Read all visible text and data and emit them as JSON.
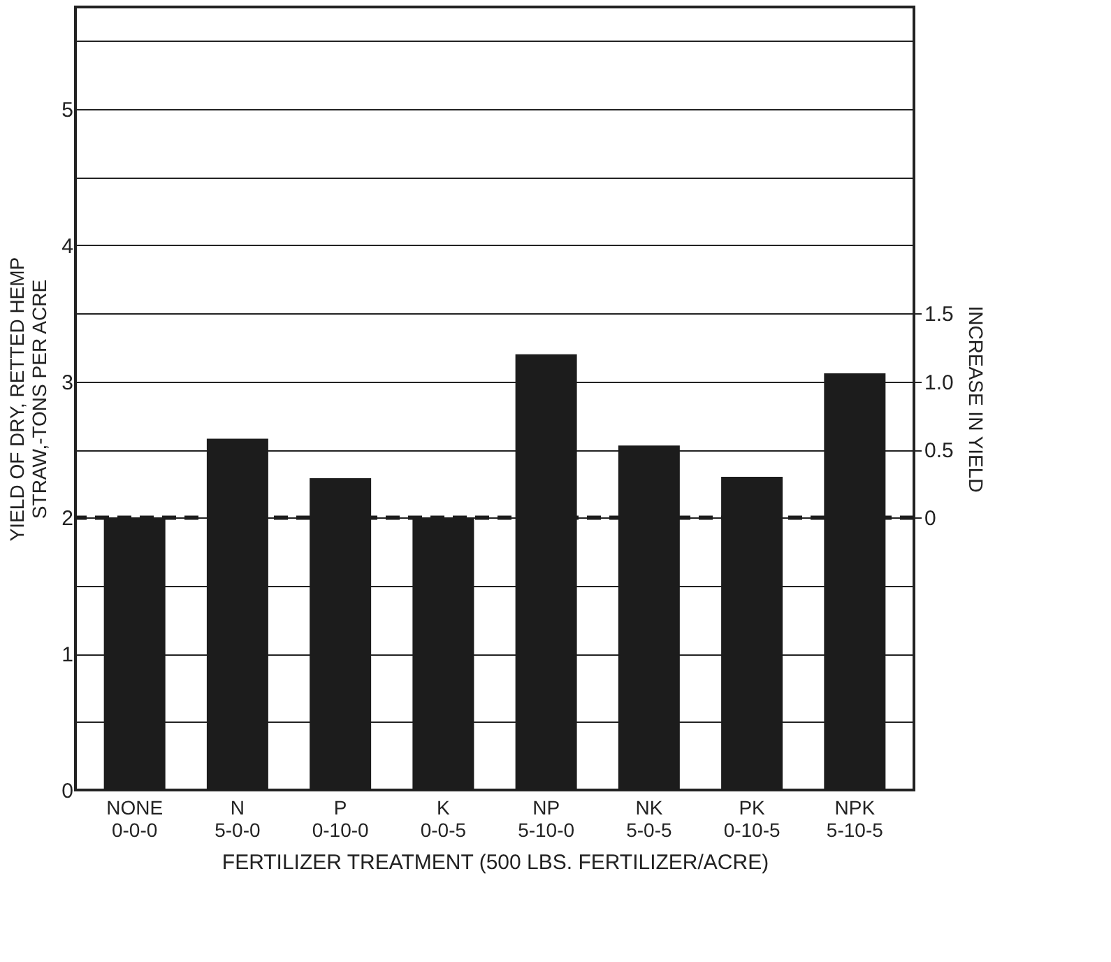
{
  "chart_data": {
    "type": "bar",
    "categories": [
      "NONE 0-0-0",
      "N 5-0-0",
      "P 0-10-0",
      "K 0-0-5",
      "NP 5-10-0",
      "NK 5-0-5",
      "PK 0-10-5",
      "NPK 5-10-5"
    ],
    "values": [
      2.0,
      2.58,
      2.29,
      2.0,
      3.2,
      2.53,
      2.3,
      3.06
    ],
    "color": "#1c1c1c",
    "xlabel": "FERTILIZER TREATMENT (500 LBS. FERTILIZER/ACRE)",
    "ylabel": "YIELD OF DRY, RETTED HEMP STRAW,-TONS PER ACRE",
    "y2label": "INCREASE IN YIELD",
    "ylim": [
      0,
      5.75
    ],
    "yticks": [
      0,
      {
        "value": 0.5,
        "label": null
      },
      1,
      {
        "value": 1.5,
        "label": null
      },
      2,
      {
        "value": 2.5,
        "label": null
      },
      3,
      {
        "value": 3.5,
        "label": null
      },
      4,
      {
        "value": 4.5,
        "label": null
      },
      5,
      {
        "value": 5.5,
        "label": null
      }
    ],
    "y2lim": [
      -2,
      3.75
    ],
    "y2ticks": [
      0,
      0.5,
      {
        "value": 1,
        "label": "1.0"
      },
      1.5
    ],
    "ref_lines": [
      {
        "axis": "y2",
        "value": 0,
        "color": "#1c1c1c",
        "line_style": "dashed"
      }
    ],
    "grid": "y"
  }
}
